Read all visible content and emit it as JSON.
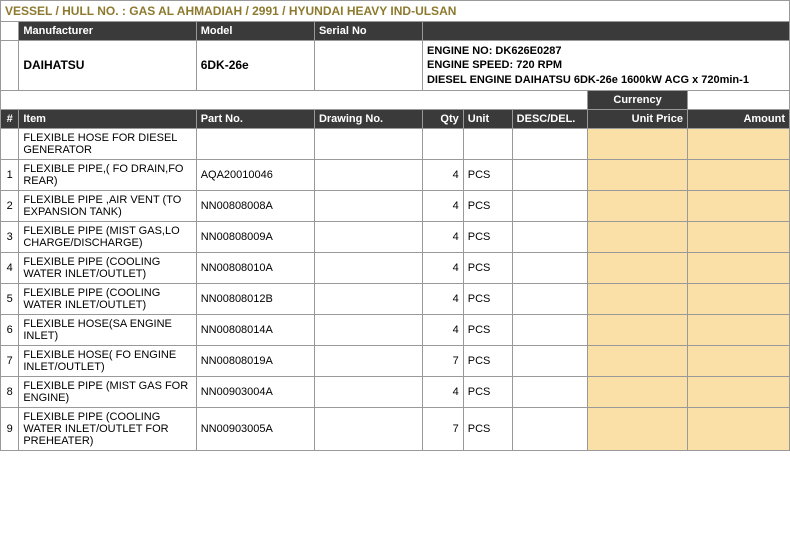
{
  "vessel_line": "VESSEL / HULL NO. : GAS AL AHMADIAH / 2991 / HYUNDAI HEAVY IND-ULSAN",
  "header": {
    "manufacturer_label": "Manufacturer",
    "model_label": "Model",
    "serial_label": "Serial No",
    "manufacturer": "DAIHATSU",
    "model": "6DK-26e",
    "serial": "",
    "engine_info_lines": [
      "ENGINE NO: DK626E0287",
      "ENGINE SPEED: 720 RPM",
      "DIESEL ENGINE DAIHATSU 6DK-26e 1600kW ACG x 720min-1"
    ]
  },
  "currency_label": "Currency",
  "columns": {
    "num": "#",
    "item": "Item",
    "part": "Part No.",
    "drawing": "Drawing No.",
    "qty": "Qty",
    "unit": "Unit",
    "desc": "DESC/DEL.",
    "unit_price": "Unit Price",
    "amount": "Amount"
  },
  "section_title": "FLEXIBLE HOSE FOR DIESEL GENERATOR",
  "rows": [
    {
      "n": "1",
      "item": "FLEXIBLE PIPE,( FO DRAIN,FO REAR)",
      "part": "AQA20010046",
      "drawing": "",
      "qty": "4",
      "unit": "PCS",
      "desc": "",
      "up": "",
      "amt": ""
    },
    {
      "n": "2",
      "item": "FLEXIBLE PIPE ,AIR VENT (TO EXPANSION TANK)",
      "part": "NN00808008A",
      "drawing": "",
      "qty": "4",
      "unit": "PCS",
      "desc": "",
      "up": "",
      "amt": ""
    },
    {
      "n": "3",
      "item": "FLEXIBLE PIPE (MIST GAS,LO CHARGE/DISCHARGE)",
      "part": "NN00808009A",
      "drawing": "",
      "qty": "4",
      "unit": "PCS",
      "desc": "",
      "up": "",
      "amt": ""
    },
    {
      "n": "4",
      "item": "FLEXIBLE PIPE (COOLING WATER INLET/OUTLET)",
      "part": "NN00808010A",
      "drawing": "",
      "qty": "4",
      "unit": "PCS",
      "desc": "",
      "up": "",
      "amt": ""
    },
    {
      "n": "5",
      "item": "FLEXIBLE PIPE (COOLING WATER INLET/OUTLET)",
      "part": "NN00808012B",
      "drawing": "",
      "qty": "4",
      "unit": "PCS",
      "desc": "",
      "up": "",
      "amt": ""
    },
    {
      "n": "6",
      "item": "FLEXIBLE HOSE(SA ENGINE INLET)",
      "part": "NN00808014A",
      "drawing": "",
      "qty": "4",
      "unit": "PCS",
      "desc": "",
      "up": "",
      "amt": ""
    },
    {
      "n": "7",
      "item": "FLEXIBLE HOSE( FO ENGINE INLET/OUTLET)",
      "part": "NN00808019A",
      "drawing": "",
      "qty": "7",
      "unit": "PCS",
      "desc": "",
      "up": "",
      "amt": ""
    },
    {
      "n": "8",
      "item": "FLEXIBLE PIPE (MIST GAS FOR ENGINE)",
      "part": "NN00903004A",
      "drawing": "",
      "qty": "4",
      "unit": "PCS",
      "desc": "",
      "up": "",
      "amt": ""
    },
    {
      "n": "9",
      "item": "FLEXIBLE PIPE (COOLING WATER INLET/OUTLET FOR PREHEATER)",
      "part": "NN00903005A",
      "drawing": "",
      "qty": "7",
      "unit": "PCS",
      "desc": "",
      "up": "",
      "amt": ""
    }
  ],
  "col_widths": {
    "num": 18,
    "item": 174,
    "part": 116,
    "drawing": 106,
    "qty": 40,
    "unit": 48,
    "desc": 74,
    "up": 98,
    "amt": 100
  }
}
